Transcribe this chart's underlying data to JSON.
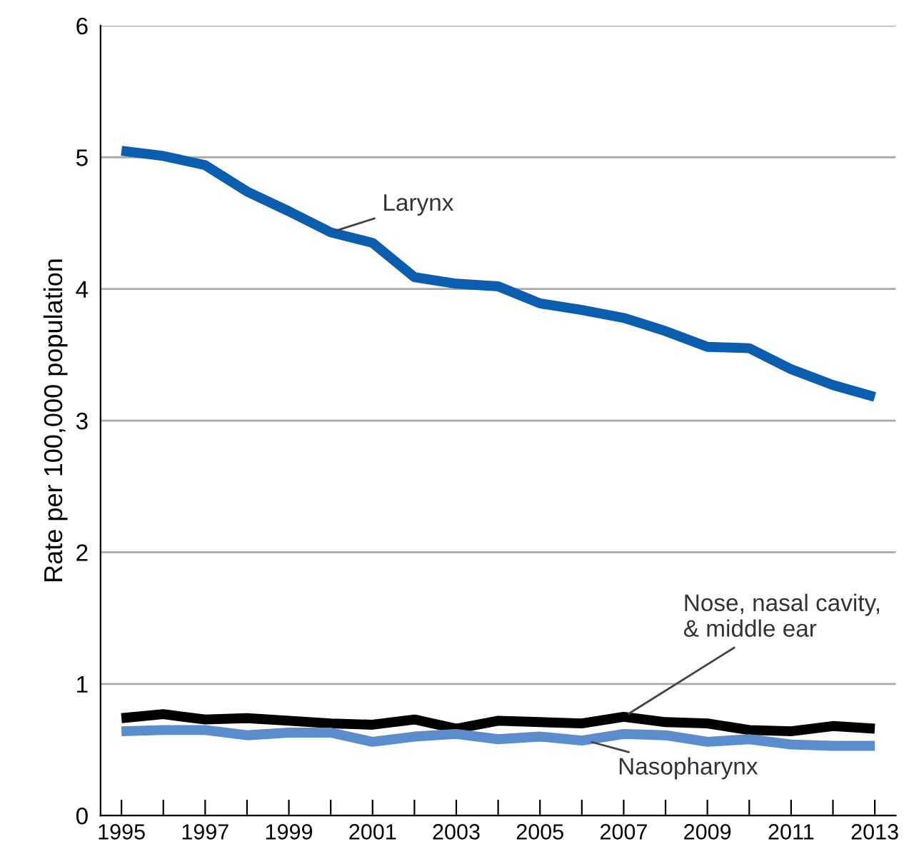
{
  "chart_data": {
    "type": "line",
    "ylabel": "Rate per 100,000 population",
    "x": [
      1995,
      1996,
      1997,
      1998,
      1999,
      2000,
      2001,
      2002,
      2003,
      2004,
      2005,
      2006,
      2007,
      2008,
      2009,
      2010,
      2011,
      2012,
      2013
    ],
    "series": [
      {
        "color": "#0a5ead",
        "values": [
          5.05,
          5.01,
          4.94,
          4.74,
          4.59,
          4.43,
          4.35,
          4.09,
          4.04,
          4.02,
          3.89,
          3.84,
          3.78,
          3.68,
          3.56,
          3.55,
          3.39,
          3.27,
          3.18
        ]
      },
      {
        "color": "#000000",
        "values": [
          0.74,
          0.77,
          0.73,
          0.74,
          0.72,
          0.7,
          0.69,
          0.73,
          0.66,
          0.72,
          0.71,
          0.7,
          0.75,
          0.71,
          0.7,
          0.65,
          0.64,
          0.68,
          0.66
        ]
      },
      {
        "color": "#5b8ccc",
        "values": [
          0.64,
          0.65,
          0.65,
          0.61,
          0.63,
          0.63,
          0.56,
          0.6,
          0.62,
          0.58,
          0.6,
          0.57,
          0.62,
          0.61,
          0.56,
          0.58,
          0.54,
          0.53,
          0.53
        ]
      }
    ],
    "annotations": [
      {
        "text": "Larynx",
        "x": 2000,
        "y": 4.43
      },
      {
        "text": "Nose, nasal cavity,\n& middle ear",
        "x": 2007,
        "y": 0.75
      },
      {
        "text": "Nasopharynx",
        "x": 2006.1,
        "y": 0.57
      }
    ],
    "xlim": [
      1994.5,
      2013.5
    ],
    "ylim": [
      0,
      6
    ],
    "yticks": [
      0,
      1,
      2,
      3,
      4,
      5,
      6
    ],
    "xticks": [
      1995,
      {
        "value": 1996,
        "label": null
      },
      1997,
      {
        "value": 1998,
        "label": null
      },
      1999,
      {
        "value": 2000,
        "label": null
      },
      2001,
      {
        "value": 2002,
        "label": null
      },
      2003,
      {
        "value": 2004,
        "label": null
      },
      2005,
      {
        "value": 2006,
        "label": null
      },
      2007,
      {
        "value": 2008,
        "label": null
      },
      2009,
      {
        "value": 2010,
        "label": null
      },
      2011,
      {
        "value": 2012,
        "label": null
      },
      2013
    ],
    "grid": "y",
    "legend": false,
    "marker": "none",
    "line_style": "solid"
  }
}
